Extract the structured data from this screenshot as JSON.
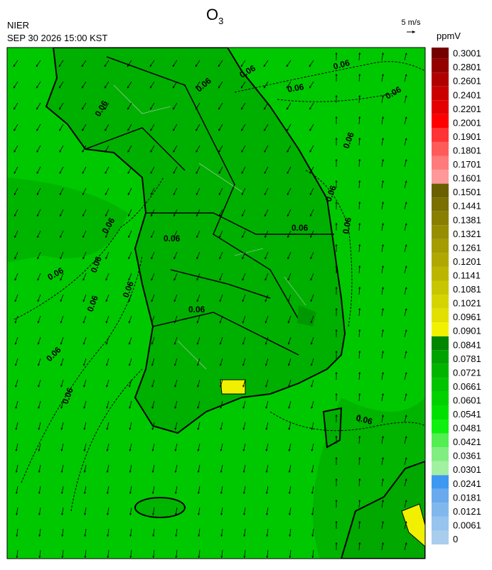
{
  "header": {
    "agency": "NIER",
    "datetime": "SEP 30 2026 15:00 KST",
    "title": {
      "text": "O",
      "subscript": "3"
    },
    "wind_scale": "5 m/s"
  },
  "colorbar": {
    "unit": "ppmV",
    "levels": [
      0,
      0.0061,
      0.0121,
      0.0181,
      0.0241,
      0.0301,
      0.0361,
      0.0421,
      0.0481,
      0.0541,
      0.0601,
      0.0661,
      0.0721,
      0.0781,
      0.0841,
      0.0901,
      0.0961,
      0.1021,
      0.1081,
      0.1141,
      0.1201,
      0.1261,
      0.1321,
      0.1381,
      0.1441,
      0.1501,
      0.1601,
      0.1701,
      0.1801,
      0.1901,
      0.2001,
      0.2201,
      0.2401,
      0.2601,
      0.2801,
      0.3001
    ],
    "colors": [
      "#a9cdec",
      "#96c4ef",
      "#80b8ee",
      "#68aaec",
      "#3d98f2",
      "#a2f0a2",
      "#80ee80",
      "#52ee52",
      "#10f010",
      "#00e000",
      "#00d200",
      "#00c400",
      "#00b400",
      "#00a200",
      "#008600",
      "#f2f200",
      "#e2e000",
      "#d6d400",
      "#c8c600",
      "#bcb600",
      "#b0a800",
      "#a49c00",
      "#968e00",
      "#887e00",
      "#7a7000",
      "#6a6000",
      "#ff9898",
      "#ff7a7a",
      "#ff5a5a",
      "#ff3434",
      "#ff0000",
      "#e40000",
      "#ca0000",
      "#b00000",
      "#940000",
      "#740000"
    ]
  },
  "map": {
    "contour_labels": [
      "0.06",
      "0.06",
      "0.06",
      "0.06",
      "0.06",
      "0.06",
      "0.06",
      "0.06",
      "0.06",
      "0.06",
      "0.06",
      "0.06",
      "0.06",
      "0.06",
      "0.06",
      "0.06",
      "0.06",
      "0.06",
      "0.06",
      "0.06"
    ]
  }
}
